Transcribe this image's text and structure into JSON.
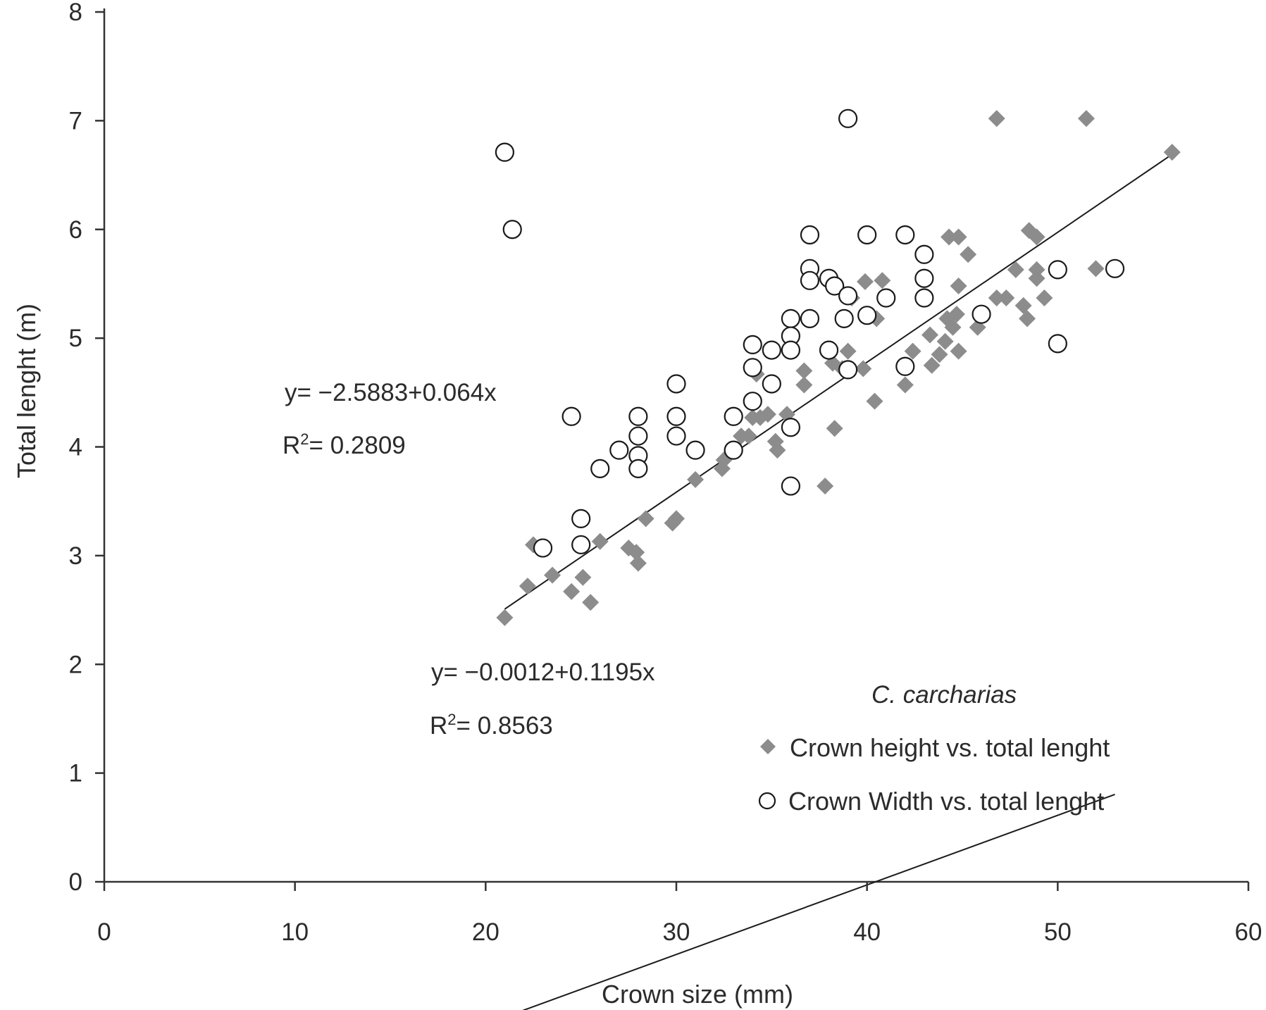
{
  "chart_data": {
    "type": "scatter",
    "xlabel": "Crown size (mm)",
    "ylabel": "Total lenght (m)",
    "xlim": [
      0,
      60
    ],
    "ylim": [
      0,
      8
    ],
    "xticks": [
      "0",
      "10",
      "20",
      "30",
      "40",
      "50",
      "60"
    ],
    "yticks": [
      "0",
      "1",
      "2",
      "3",
      "4",
      "5",
      "6",
      "7",
      "8"
    ],
    "grid": false,
    "legend": {
      "title": "C. carcharias",
      "position": "bottom-right",
      "entries": [
        {
          "marker": "diamond",
          "label": "Crown height vs. total lenght"
        },
        {
          "marker": "circle",
          "label": "Crown Width vs. total lenght"
        }
      ]
    },
    "annotations": {
      "width_eq": "y= −2.5883+0.064x",
      "width_r2_prefix": "R",
      "width_r2_sup": "2",
      "width_r2_value": "= 0.2809",
      "height_eq": "y= −0.0012+0.1195x",
      "height_r2_prefix": "R",
      "height_r2_sup": "2",
      "height_r2_value": "= 0.8563"
    },
    "series": [
      {
        "marker": "diamond",
        "color": "#8c8c8c",
        "points": [
          [
            21.0,
            2.43
          ],
          [
            22.2,
            2.72
          ],
          [
            22.5,
            3.1
          ],
          [
            23.5,
            2.82
          ],
          [
            24.5,
            2.67
          ],
          [
            25.1,
            2.8
          ],
          [
            25.5,
            2.57
          ],
          [
            26.0,
            3.13
          ],
          [
            27.5,
            3.07
          ],
          [
            27.9,
            3.03
          ],
          [
            28.0,
            2.93
          ],
          [
            28.4,
            3.34
          ],
          [
            29.8,
            3.3
          ],
          [
            30.0,
            3.34
          ],
          [
            31.0,
            3.7
          ],
          [
            32.4,
            3.8
          ],
          [
            32.5,
            3.88
          ],
          [
            33.4,
            4.1
          ],
          [
            33.8,
            4.1
          ],
          [
            34.0,
            4.27
          ],
          [
            34.2,
            4.67
          ],
          [
            34.4,
            4.27
          ],
          [
            34.8,
            4.3
          ],
          [
            35.2,
            4.05
          ],
          [
            35.3,
            3.97
          ],
          [
            35.8,
            4.3
          ],
          [
            36.7,
            4.7
          ],
          [
            36.7,
            4.57
          ],
          [
            37.8,
            3.64
          ],
          [
            38.2,
            4.77
          ],
          [
            38.3,
            4.17
          ],
          [
            38.7,
            4.72
          ],
          [
            39.0,
            4.88
          ],
          [
            39.2,
            5.37
          ],
          [
            39.8,
            4.72
          ],
          [
            39.9,
            5.52
          ],
          [
            40.4,
            4.42
          ],
          [
            40.5,
            5.18
          ],
          [
            40.8,
            5.53
          ],
          [
            42.0,
            4.57
          ],
          [
            42.4,
            4.88
          ],
          [
            43.3,
            5.03
          ],
          [
            43.4,
            4.75
          ],
          [
            43.8,
            4.85
          ],
          [
            44.1,
            4.97
          ],
          [
            44.2,
            5.18
          ],
          [
            44.3,
            5.93
          ],
          [
            44.5,
            5.1
          ],
          [
            44.7,
            5.22
          ],
          [
            44.8,
            4.88
          ],
          [
            44.8,
            5.48
          ],
          [
            44.8,
            5.93
          ],
          [
            45.3,
            5.77
          ],
          [
            45.8,
            5.1
          ],
          [
            46.8,
            5.37
          ],
          [
            46.8,
            7.02
          ],
          [
            47.3,
            5.37
          ],
          [
            47.8,
            5.63
          ],
          [
            48.2,
            5.3
          ],
          [
            48.4,
            5.18
          ],
          [
            48.5,
            5.99
          ],
          [
            48.9,
            5.93
          ],
          [
            48.9,
            5.63
          ],
          [
            48.9,
            5.55
          ],
          [
            49.3,
            5.37
          ],
          [
            51.5,
            7.02
          ],
          [
            52.0,
            5.64
          ],
          [
            56.0,
            6.71
          ]
        ]
      },
      {
        "marker": "circle",
        "color": "#ffffff",
        "points": [
          [
            21.0,
            6.71
          ],
          [
            21.4,
            6.0
          ],
          [
            23.0,
            3.07
          ],
          [
            24.5,
            4.28
          ],
          [
            25.0,
            3.34
          ],
          [
            25.0,
            3.1
          ],
          [
            26.0,
            3.8
          ],
          [
            27.0,
            3.97
          ],
          [
            28.0,
            4.28
          ],
          [
            28.0,
            4.1
          ],
          [
            28.0,
            3.92
          ],
          [
            28.0,
            3.8
          ],
          [
            30.0,
            4.58
          ],
          [
            30.0,
            4.28
          ],
          [
            30.0,
            4.1
          ],
          [
            31.0,
            3.97
          ],
          [
            33.0,
            4.28
          ],
          [
            33.0,
            3.97
          ],
          [
            34.0,
            4.94
          ],
          [
            34.0,
            4.73
          ],
          [
            34.0,
            4.42
          ],
          [
            35.0,
            4.89
          ],
          [
            35.0,
            4.58
          ],
          [
            36.0,
            5.18
          ],
          [
            36.0,
            5.02
          ],
          [
            36.0,
            4.89
          ],
          [
            36.0,
            4.18
          ],
          [
            36.0,
            3.64
          ],
          [
            37.0,
            5.95
          ],
          [
            37.0,
            5.64
          ],
          [
            37.0,
            5.53
          ],
          [
            37.0,
            5.18
          ],
          [
            38.0,
            5.55
          ],
          [
            38.0,
            4.89
          ],
          [
            38.3,
            5.48
          ],
          [
            38.8,
            5.18
          ],
          [
            39.0,
            7.02
          ],
          [
            39.0,
            5.39
          ],
          [
            39.0,
            4.71
          ],
          [
            40.0,
            5.95
          ],
          [
            40.0,
            5.21
          ],
          [
            41.0,
            5.37
          ],
          [
            42.0,
            5.95
          ],
          [
            42.0,
            4.74
          ],
          [
            43.0,
            5.77
          ],
          [
            43.0,
            5.55
          ],
          [
            43.0,
            5.37
          ],
          [
            46.0,
            5.22
          ],
          [
            50.0,
            5.63
          ],
          [
            50.0,
            4.95
          ],
          [
            53.0,
            5.64
          ]
        ]
      }
    ],
    "trendlines": [
      {
        "marker": "circle",
        "intercept": -2.5883,
        "slope": 0.064,
        "x_range": [
          21,
          53
        ]
      },
      {
        "marker": "diamond",
        "intercept": -0.0012,
        "slope": 0.1195,
        "x_range": [
          21,
          56
        ]
      }
    ]
  }
}
